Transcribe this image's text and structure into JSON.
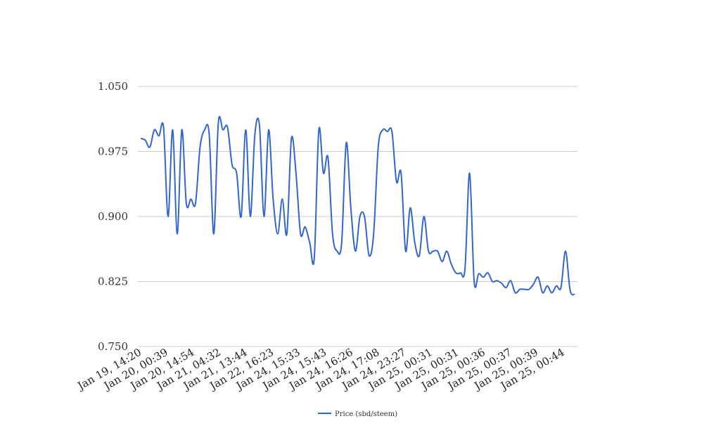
{
  "chart_data": {
    "type": "line",
    "title": "",
    "xlabel": "",
    "ylabel": "",
    "ylim": [
      0.75,
      1.05
    ],
    "yticks": [
      "1.050",
      "0.975",
      "0.900",
      "0.825",
      "0.750"
    ],
    "grid": true,
    "legend_position": "bottom",
    "series_color": "#3366cc",
    "x_tick_labels": [
      "Jan 19, 14:20",
      "Jan 20, 00:39",
      "Jan 20, 14:54",
      "Jan 21, 04:32",
      "Jan 21, 13:44",
      "Jan 22, 16:23",
      "Jan 24, 15:33",
      "Jan 24, 15:43",
      "Jan 24, 16:26",
      "Jan 24, 17:08",
      "Jan 24, 23:27",
      "Jan 25, 00:31",
      "Jan 25, 00:31",
      "Jan 25, 00:36",
      "Jan 25, 00:37",
      "Jan 25, 00:39",
      "Jan 25, 00:44"
    ],
    "series": [
      {
        "name": "Price (sbd/steem)",
        "values": [
          0.99,
          0.988,
          0.98,
          1.0,
          0.993,
          1.003,
          0.9,
          1.0,
          0.88,
          1.0,
          0.915,
          0.92,
          0.915,
          0.98,
          1.0,
          0.995,
          0.88,
          1.008,
          1.0,
          1.003,
          0.96,
          0.95,
          0.9,
          1.0,
          0.9,
          0.995,
          1.005,
          0.9,
          1.0,
          0.92,
          0.88,
          0.92,
          0.88,
          0.99,
          0.95,
          0.88,
          0.888,
          0.87,
          0.852,
          1.0,
          0.95,
          0.968,
          0.88,
          0.86,
          0.87,
          0.985,
          0.91,
          0.86,
          0.9,
          0.9,
          0.855,
          0.88,
          0.98,
          1.0,
          0.998,
          0.998,
          0.94,
          0.95,
          0.86,
          0.91,
          0.87,
          0.855,
          0.9,
          0.86,
          0.86,
          0.86,
          0.848,
          0.86,
          0.845,
          0.835,
          0.835,
          0.84,
          0.95,
          0.825,
          0.834,
          0.83,
          0.835,
          0.825,
          0.826,
          0.823,
          0.818,
          0.826,
          0.812,
          0.816,
          0.816,
          0.816,
          0.822,
          0.83,
          0.812,
          0.82,
          0.812,
          0.82,
          0.818,
          0.86,
          0.815,
          0.81
        ]
      }
    ]
  }
}
